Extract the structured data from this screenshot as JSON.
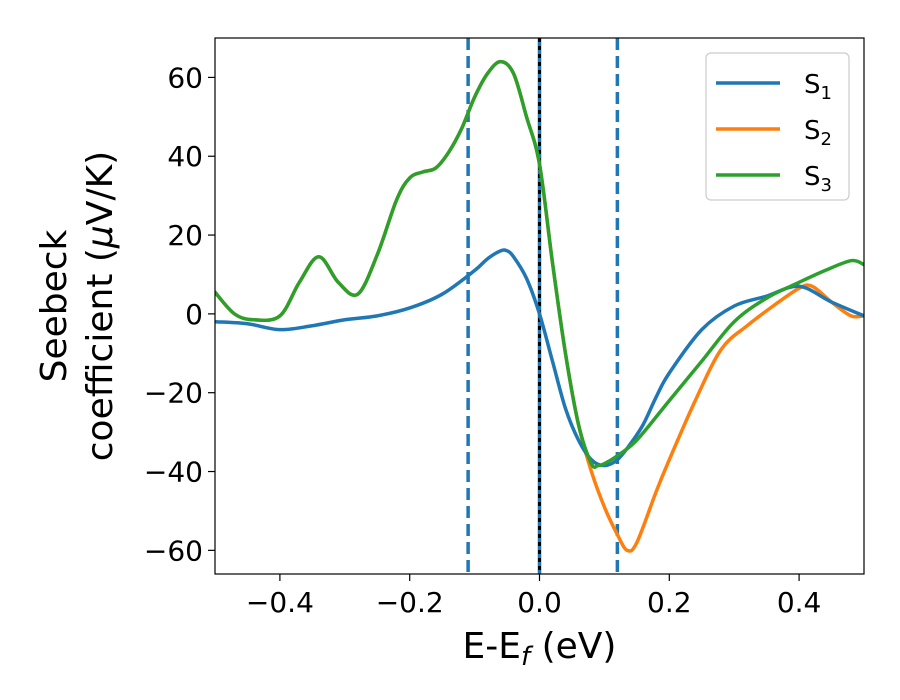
{
  "chart_data": {
    "type": "line",
    "xlabel": {
      "main": "E-E",
      "sub": "f",
      "tail": " (eV)"
    },
    "ylabel": {
      "line1": "Seebeck",
      "line2_main": "coefficient  (",
      "line2_mu": "μ",
      "line2_tail": "V/K)"
    },
    "xlim": [
      -0.5,
      0.5
    ],
    "ylim": [
      -66,
      70
    ],
    "xticks": [
      -0.4,
      -0.2,
      0.0,
      0.2,
      0.4
    ],
    "xtick_labels": [
      "−0.4",
      "−0.2",
      "0.0",
      "0.2",
      "0.4"
    ],
    "yticks": [
      -60,
      -40,
      -20,
      0,
      20,
      40,
      60
    ],
    "ytick_labels": [
      "−60",
      "−40",
      "−20",
      "0",
      "20",
      "40",
      "60"
    ],
    "grid": false,
    "legend_position": "top-right",
    "vlines": [
      {
        "x": -0.11,
        "color": "#1f77b4",
        "style": "dashed"
      },
      {
        "x": 0.0,
        "color": "#1f77b4",
        "style": "solid"
      },
      {
        "x": 0.0,
        "color": "#000000",
        "style": "dotted"
      },
      {
        "x": 0.12,
        "color": "#1f77b4",
        "style": "dashed"
      }
    ],
    "series": [
      {
        "name": "S",
        "sub": "1",
        "color": "#1f77b4",
        "x": [
          -0.5,
          -0.45,
          -0.4,
          -0.35,
          -0.3,
          -0.25,
          -0.2,
          -0.15,
          -0.1,
          -0.08,
          -0.06,
          -0.05,
          -0.04,
          -0.02,
          0.0,
          0.02,
          0.04,
          0.06,
          0.08,
          0.1,
          0.12,
          0.14,
          0.16,
          0.18,
          0.2,
          0.25,
          0.3,
          0.35,
          0.4,
          0.45,
          0.5
        ],
        "y": [
          -2,
          -2.5,
          -4,
          -3,
          -1.5,
          -0.5,
          1.5,
          5,
          11,
          14,
          16,
          16,
          14.5,
          9,
          0,
          -12,
          -24,
          -32,
          -37,
          -38.5,
          -37,
          -33,
          -28,
          -21,
          -15,
          -4,
          2,
          4.5,
          7,
          3,
          -0.5
        ]
      },
      {
        "name": "S",
        "sub": "2",
        "color": "#ff7f0e",
        "x": [
          -0.5,
          -0.47,
          -0.44,
          -0.4,
          -0.37,
          -0.34,
          -0.31,
          -0.28,
          -0.25,
          -0.22,
          -0.2,
          -0.18,
          -0.16,
          -0.14,
          -0.12,
          -0.1,
          -0.08,
          -0.06,
          -0.04,
          -0.02,
          0.0,
          0.02,
          0.04,
          0.06,
          0.08,
          0.1,
          0.12,
          0.135,
          0.15,
          0.18,
          0.2,
          0.24,
          0.28,
          0.32,
          0.36,
          0.4,
          0.42,
          0.45,
          0.48,
          0.5
        ],
        "y": [
          5.5,
          0,
          -1.5,
          -0.5,
          8,
          14.5,
          8,
          5,
          15,
          29,
          34.5,
          36,
          37,
          41,
          47,
          55,
          61,
          64,
          61,
          50,
          38,
          13,
          -10,
          -28,
          -40,
          -49,
          -56,
          -60,
          -58,
          -45,
          -37,
          -22,
          -9,
          -3,
          2,
          6.5,
          7,
          3,
          -0.5,
          -0.5
        ]
      },
      {
        "name": "S",
        "sub": "3",
        "color": "#2ca02c",
        "x": [
          -0.5,
          -0.47,
          -0.44,
          -0.4,
          -0.37,
          -0.34,
          -0.31,
          -0.28,
          -0.25,
          -0.22,
          -0.2,
          -0.18,
          -0.16,
          -0.14,
          -0.12,
          -0.1,
          -0.08,
          -0.06,
          -0.04,
          -0.02,
          0.0,
          0.02,
          0.04,
          0.06,
          0.08,
          0.09,
          0.1,
          0.12,
          0.15,
          0.2,
          0.25,
          0.3,
          0.35,
          0.4,
          0.44,
          0.48,
          0.5
        ],
        "y": [
          5.5,
          0,
          -1.5,
          -0.5,
          8,
          14.5,
          8,
          5,
          15,
          29,
          34.5,
          36,
          37,
          41,
          47,
          55,
          61,
          64,
          61,
          50,
          38,
          13,
          -10,
          -28,
          -38,
          -38.5,
          -38,
          -36,
          -32,
          -22,
          -12,
          -2,
          4,
          8,
          11,
          13.5,
          12.5
        ]
      }
    ]
  }
}
